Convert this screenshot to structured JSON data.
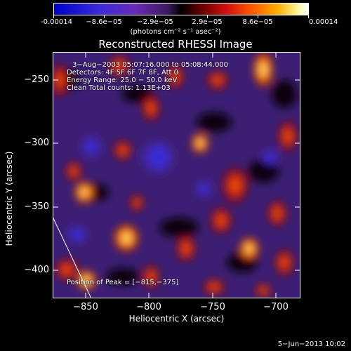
{
  "colorbar": {
    "ticks": [
      "-0.00014",
      "−8.6e−05",
      "−2.9e−05",
      "2.9e−05",
      "8.6e−05",
      "0.00014"
    ],
    "units": "(photons cm⁻² s⁻¹ asec⁻²)",
    "range": [
      -0.00014,
      0.00014
    ]
  },
  "title": "Reconstructed RHESSI Image",
  "annotations": {
    "time_range": "3−Aug−2003 05:07:16.000 to 05:08:44.000",
    "detectors": "Detectors: 4F 5F 6F 7F 8F, Att 0",
    "energy": "Energy Range: 25.0 − 50.0 keV",
    "clean": "Clean    Total counts: 1.13E+03",
    "peak": "Position of Peak = [−815,−375]"
  },
  "axes": {
    "xlabel": "Heliocentric X (arcsec)",
    "ylabel": "Heliocentric Y (arcsec)",
    "xticks": [
      "−850",
      "−800",
      "−750",
      "−700"
    ],
    "yticks": [
      "−250",
      "−300",
      "−350",
      "−400"
    ],
    "xrange": [
      -875,
      -680
    ],
    "yrange": [
      -423,
      -229
    ]
  },
  "datestamp": "5−Jun−2013 10:02"
}
